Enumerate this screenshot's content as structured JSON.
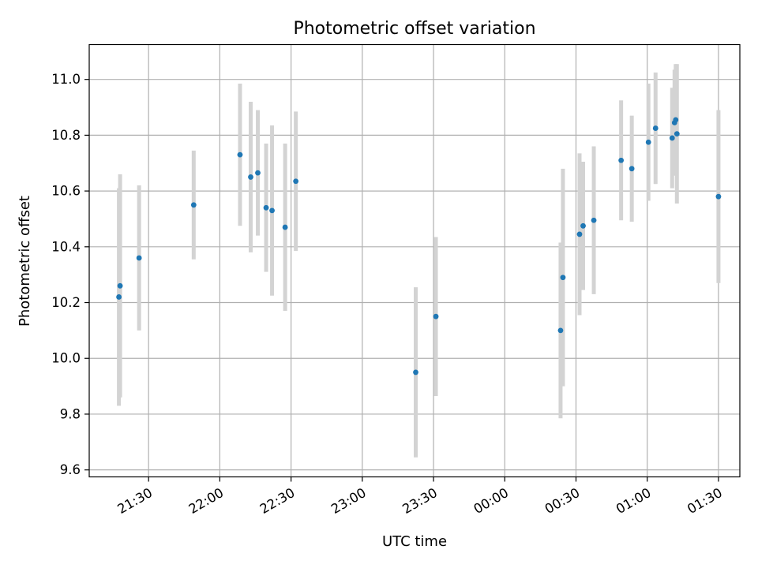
{
  "chart_data": {
    "type": "scatter",
    "title": "Photometric offset variation",
    "xlabel": "UTC time",
    "ylabel": "Photometric offset",
    "x_unit": "UTC clock time (24h, crosses midnight)",
    "xlim": [
      "21:05",
      "01:39"
    ],
    "ylim": [
      9.575,
      11.125
    ],
    "x_ticks": [
      "21:30",
      "22:00",
      "22:30",
      "23:00",
      "23:30",
      "00:00",
      "00:30",
      "01:00",
      "01:30"
    ],
    "y_ticks": [
      "9.6",
      "9.8",
      "10.0",
      "10.2",
      "10.4",
      "10.6",
      "10.8",
      "11.0"
    ],
    "grid": true,
    "colors": {
      "marker": "#1f77b4",
      "errorbar": "#d3d3d3",
      "grid": "#b0b0b0",
      "axes": "#000000"
    },
    "points": [
      {
        "x": "21:17:30",
        "y": 10.22,
        "yerr": 0.39
      },
      {
        "x": "21:18:00",
        "y": 10.26,
        "yerr": 0.4
      },
      {
        "x": "21:26:00",
        "y": 10.36,
        "yerr": 0.26
      },
      {
        "x": "21:49:00",
        "y": 10.55,
        "yerr": 0.195
      },
      {
        "x": "22:08:30",
        "y": 10.73,
        "yerr": 0.255
      },
      {
        "x": "22:13:00",
        "y": 10.65,
        "yerr": 0.27
      },
      {
        "x": "22:16:00",
        "y": 10.665,
        "yerr": 0.225
      },
      {
        "x": "22:19:30",
        "y": 10.54,
        "yerr": 0.23
      },
      {
        "x": "22:22:00",
        "y": 10.53,
        "yerr": 0.305
      },
      {
        "x": "22:27:30",
        "y": 10.47,
        "yerr": 0.3
      },
      {
        "x": "22:32:00",
        "y": 10.635,
        "yerr": 0.25
      },
      {
        "x": "23:22:30",
        "y": 9.95,
        "yerr": 0.305
      },
      {
        "x": "23:31:00",
        "y": 10.15,
        "yerr": 0.285
      },
      {
        "x": "00:23:30",
        "y": 10.1,
        "yerr": 0.315
      },
      {
        "x": "00:24:30",
        "y": 10.29,
        "yerr": 0.39
      },
      {
        "x": "00:31:30",
        "y": 10.445,
        "yerr": 0.29
      },
      {
        "x": "00:33:00",
        "y": 10.475,
        "yerr": 0.23
      },
      {
        "x": "00:37:30",
        "y": 10.495,
        "yerr": 0.265
      },
      {
        "x": "00:49:00",
        "y": 10.71,
        "yerr": 0.215
      },
      {
        "x": "00:53:30",
        "y": 10.68,
        "yerr": 0.19
      },
      {
        "x": "01:00:30",
        "y": 10.775,
        "yerr": 0.21
      },
      {
        "x": "01:03:30",
        "y": 10.825,
        "yerr": 0.2
      },
      {
        "x": "01:10:30",
        "y": 10.79,
        "yerr": 0.18
      },
      {
        "x": "01:11:30",
        "y": 10.845,
        "yerr": 0.19
      },
      {
        "x": "01:12:00",
        "y": 10.855,
        "yerr": 0.2
      },
      {
        "x": "01:12:30",
        "y": 10.805,
        "yerr": 0.25
      },
      {
        "x": "01:30:00",
        "y": 10.58,
        "yerr": 0.31
      }
    ]
  }
}
